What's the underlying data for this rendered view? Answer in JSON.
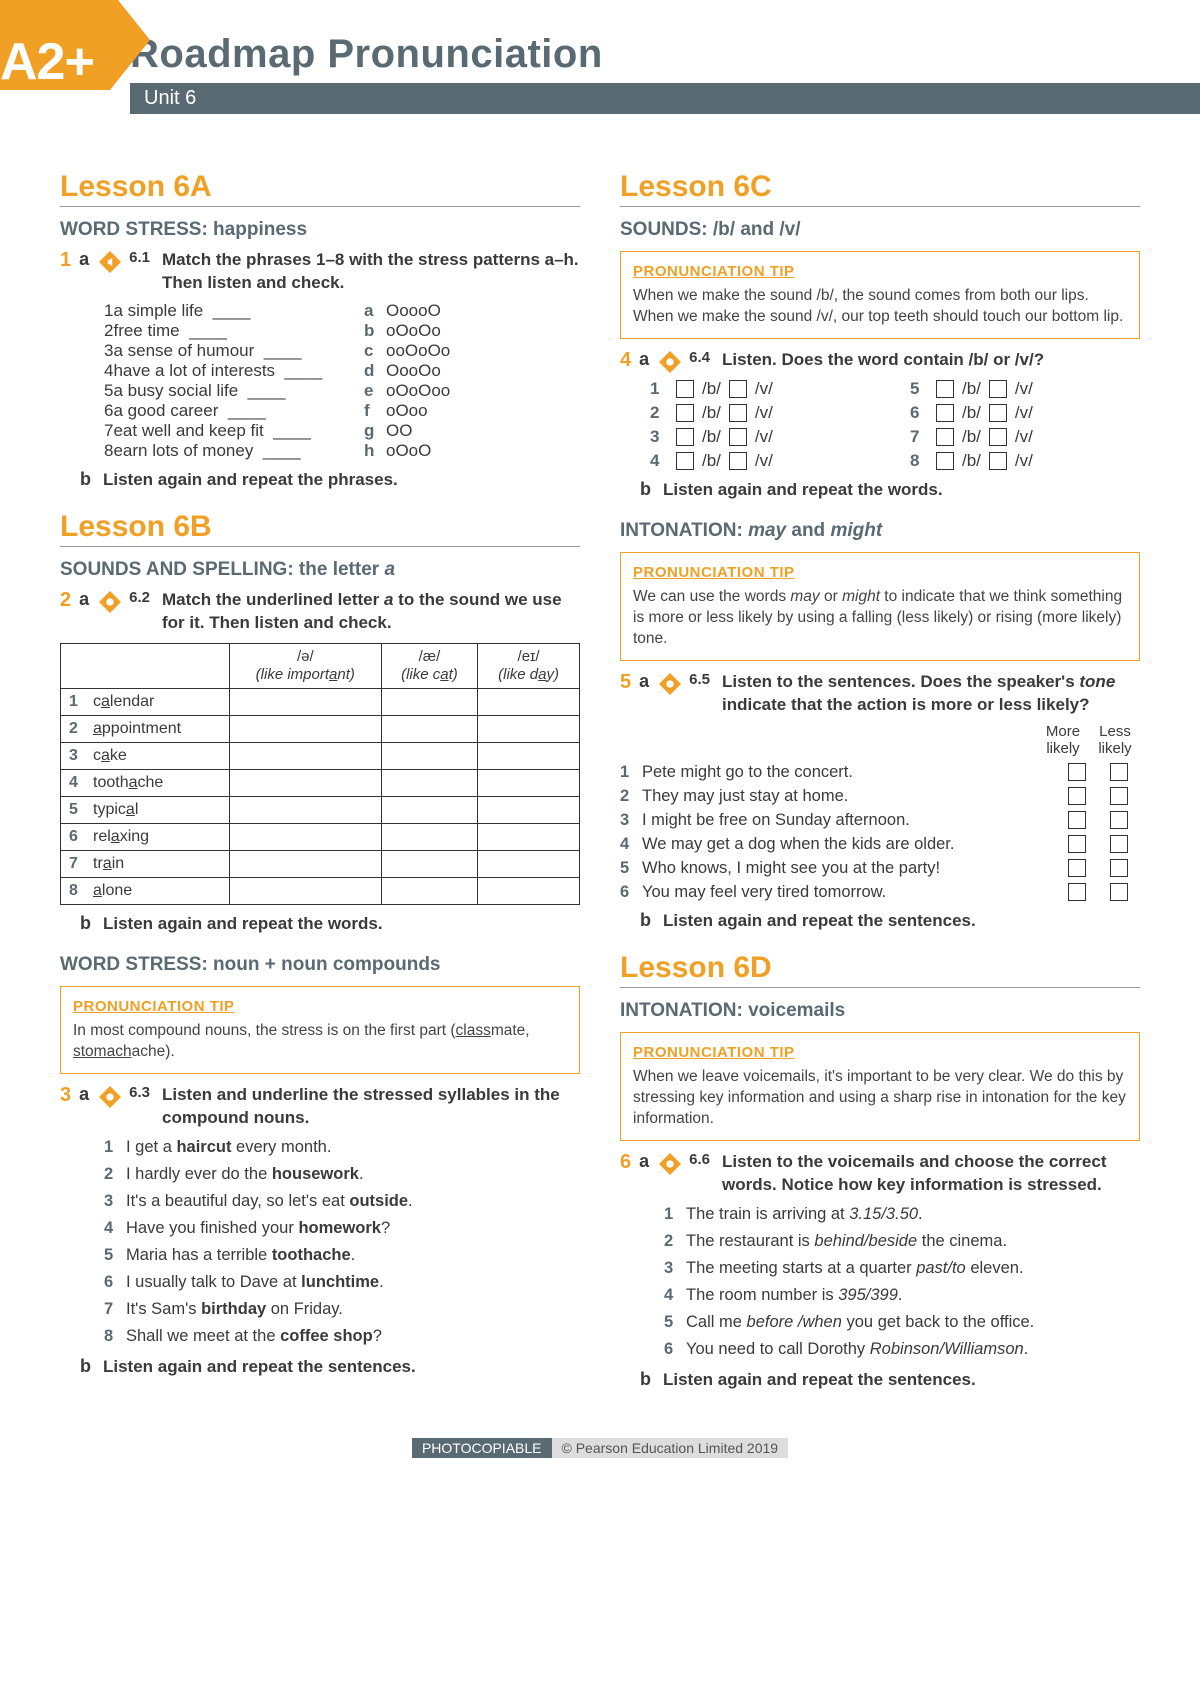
{
  "header": {
    "level": "A2+",
    "title": "Roadmap Pronunciation",
    "unit": "Unit 6",
    "badge_color": "#f0a024",
    "bar_color": "#5a6a73"
  },
  "lesson6A": {
    "title": "Lesson 6A",
    "section": "WORD STRESS: happiness",
    "ex1": {
      "num": "1",
      "sub": "a",
      "track": "6.1",
      "instr": "Match the phrases 1–8 with the stress patterns a–h. Then listen and check.",
      "items": [
        {
          "n": "1",
          "t": "a simple life"
        },
        {
          "n": "2",
          "t": "free time"
        },
        {
          "n": "3",
          "t": "a sense of humour"
        },
        {
          "n": "4",
          "t": "have a lot of interests"
        },
        {
          "n": "5",
          "t": "a busy social life"
        },
        {
          "n": "6",
          "t": "a good career"
        },
        {
          "n": "7",
          "t": "eat well and keep fit"
        },
        {
          "n": "8",
          "t": "earn lots of money"
        }
      ],
      "patterns": [
        {
          "n": "a",
          "t": "OoooO"
        },
        {
          "n": "b",
          "t": "oOoOo"
        },
        {
          "n": "c",
          "t": "ooOoOo"
        },
        {
          "n": "d",
          "t": "OooOo"
        },
        {
          "n": "e",
          "t": "oOoOoo"
        },
        {
          "n": "f",
          "t": "oOoo"
        },
        {
          "n": "g",
          "t": "OO"
        },
        {
          "n": "h",
          "t": "oOoO"
        }
      ],
      "b": "Listen again and repeat the phrases."
    }
  },
  "lesson6B": {
    "title": "Lesson 6B",
    "section1": "SOUNDS AND SPELLING: the letter ",
    "section1_em": "a",
    "ex2": {
      "num": "2",
      "sub": "a",
      "track": "6.2",
      "instr_pre": "Match the underlined letter ",
      "instr_em": "a",
      "instr_post": " to the sound we use for it. Then listen and check.",
      "cols": [
        {
          "ipa": "/ə/",
          "like": "(like ",
          "word": "important",
          "uidx": 6,
          "after": ")"
        },
        {
          "ipa": "/æ/",
          "like": "(like ",
          "word": "cat",
          "uidx": 1,
          "after": ")"
        },
        {
          "ipa": "/eɪ/",
          "like": "(like ",
          "word": "day",
          "uidx": 1,
          "after": ")"
        }
      ],
      "rows": [
        {
          "n": "1",
          "w": "calendar",
          "u": 1
        },
        {
          "n": "2",
          "w": "appointment",
          "u": 0
        },
        {
          "n": "3",
          "w": "cake",
          "u": 1
        },
        {
          "n": "4",
          "w": "toothache",
          "u": 5
        },
        {
          "n": "5",
          "w": "typical",
          "u": 5
        },
        {
          "n": "6",
          "w": "relaxing",
          "u": 3
        },
        {
          "n": "7",
          "w": "train",
          "u": 2
        },
        {
          "n": "8",
          "w": "alone",
          "u": 0
        }
      ],
      "b": "Listen again and repeat the words."
    },
    "section2": "WORD STRESS: noun + noun compounds",
    "tip": {
      "title": "PRONUNCIATION TIP",
      "text_pre": "In most compound nouns, the stress is on the first part (",
      "w1": "class",
      "w1r": "mate, ",
      "w2": "stomach",
      "w2r": "ache).",
      "text": ""
    },
    "ex3": {
      "num": "3",
      "sub": "a",
      "track": "6.3",
      "instr": "Listen and underline the stressed syllables in the compound nouns.",
      "items": [
        {
          "n": "1",
          "pre": "I get a ",
          "b": "haircut",
          "post": " every month."
        },
        {
          "n": "2",
          "pre": "I hardly ever do the ",
          "b": "housework",
          "post": "."
        },
        {
          "n": "3",
          "pre": "It's a beautiful day, so let's eat ",
          "b": "outside",
          "post": "."
        },
        {
          "n": "4",
          "pre": "Have you finished your ",
          "b": "homework",
          "post": "?"
        },
        {
          "n": "5",
          "pre": "Maria has a terrible ",
          "b": "toothache",
          "post": "."
        },
        {
          "n": "6",
          "pre": "I usually talk to Dave at ",
          "b": "lunchtime",
          "post": "."
        },
        {
          "n": "7",
          "pre": "It's Sam's ",
          "b": "birthday",
          "post": " on Friday."
        },
        {
          "n": "8",
          "pre": "Shall we meet at the ",
          "b": "coffee shop",
          "post": "?"
        }
      ],
      "b": "Listen again and repeat the sentences."
    }
  },
  "lesson6C": {
    "title": "Lesson 6C",
    "section1": "SOUNDS: /b/ and /v/",
    "tip1": {
      "title": "PRONUNCIATION TIP",
      "text": "When we make the sound /b/, the sound comes from both our lips. When we make the sound /v/, our top teeth should touch our bottom lip."
    },
    "ex4": {
      "num": "4",
      "sub": "a",
      "track": "6.4",
      "instr": "Listen. Does the word contain /b/ or /v/?",
      "rows": [
        [
          "1",
          "5"
        ],
        [
          "2",
          "6"
        ],
        [
          "3",
          "7"
        ],
        [
          "4",
          "8"
        ]
      ],
      "lab_b": "/b/",
      "lab_v": "/v/",
      "b": "Listen again and repeat the words."
    },
    "section2_pre": "INTONATION: ",
    "section2_em1": "may",
    "section2_mid": " and ",
    "section2_em2": "might",
    "tip2": {
      "title": "PRONUNCIATION TIP",
      "text_pre": "We can use the words ",
      "em1": "may",
      "mid": " or ",
      "em2": "might",
      "text_post": " to indicate that we think something is more or less likely by using a falling (less likely) or rising (more likely) tone."
    },
    "ex5": {
      "num": "5",
      "sub": "a",
      "track": "6.5",
      "instr_pre": "Listen to the sentences. Does the speaker's ",
      "instr_em": "tone",
      "instr_post": " indicate that the action is more or less likely?",
      "head_more": "More likely",
      "head_less": "Less likely",
      "items": [
        {
          "n": "1",
          "t": "Pete might go to the concert."
        },
        {
          "n": "2",
          "t": "They may just stay at home."
        },
        {
          "n": "3",
          "t": "I might be free on Sunday afternoon."
        },
        {
          "n": "4",
          "t": "We may get a dog when the kids are older."
        },
        {
          "n": "5",
          "t": "Who knows, I might see you at the party!"
        },
        {
          "n": "6",
          "t": "You may feel very tired tomorrow."
        }
      ],
      "b": "Listen again and repeat the sentences."
    }
  },
  "lesson6D": {
    "title": "Lesson 6D",
    "section": "INTONATION: voicemails",
    "tip": {
      "title": "PRONUNCIATION TIP",
      "text": "When we leave voicemails, it's important to be very clear. We do this by stressing key information and using a sharp rise in intonation for the key information."
    },
    "ex6": {
      "num": "6",
      "sub": "a",
      "track": "6.6",
      "instr": "Listen to the voicemails and choose the correct words. Notice how key information is stressed.",
      "items": [
        {
          "n": "1",
          "pre": "The train is arriving at ",
          "em": "3.15/3.50",
          "post": "."
        },
        {
          "n": "2",
          "pre": "The restaurant is ",
          "em": "behind/beside",
          "post": " the cinema."
        },
        {
          "n": "3",
          "pre": "The meeting starts at a quarter ",
          "em": "past/to",
          "post": " eleven."
        },
        {
          "n": "4",
          "pre": "The room number is ",
          "em": "395/399",
          "post": "."
        },
        {
          "n": "5",
          "pre": "Call me ",
          "em": "before /when",
          "post": " you get back to the office."
        },
        {
          "n": "6",
          "pre": "You need to call Dorothy ",
          "em": "Robinson/Williamson",
          "post": "."
        }
      ],
      "b": "Listen again and repeat the sentences."
    }
  },
  "footer": {
    "photocopiable": "PHOTOCOPIABLE",
    "copyright": "© Pearson Education Limited 2019"
  }
}
